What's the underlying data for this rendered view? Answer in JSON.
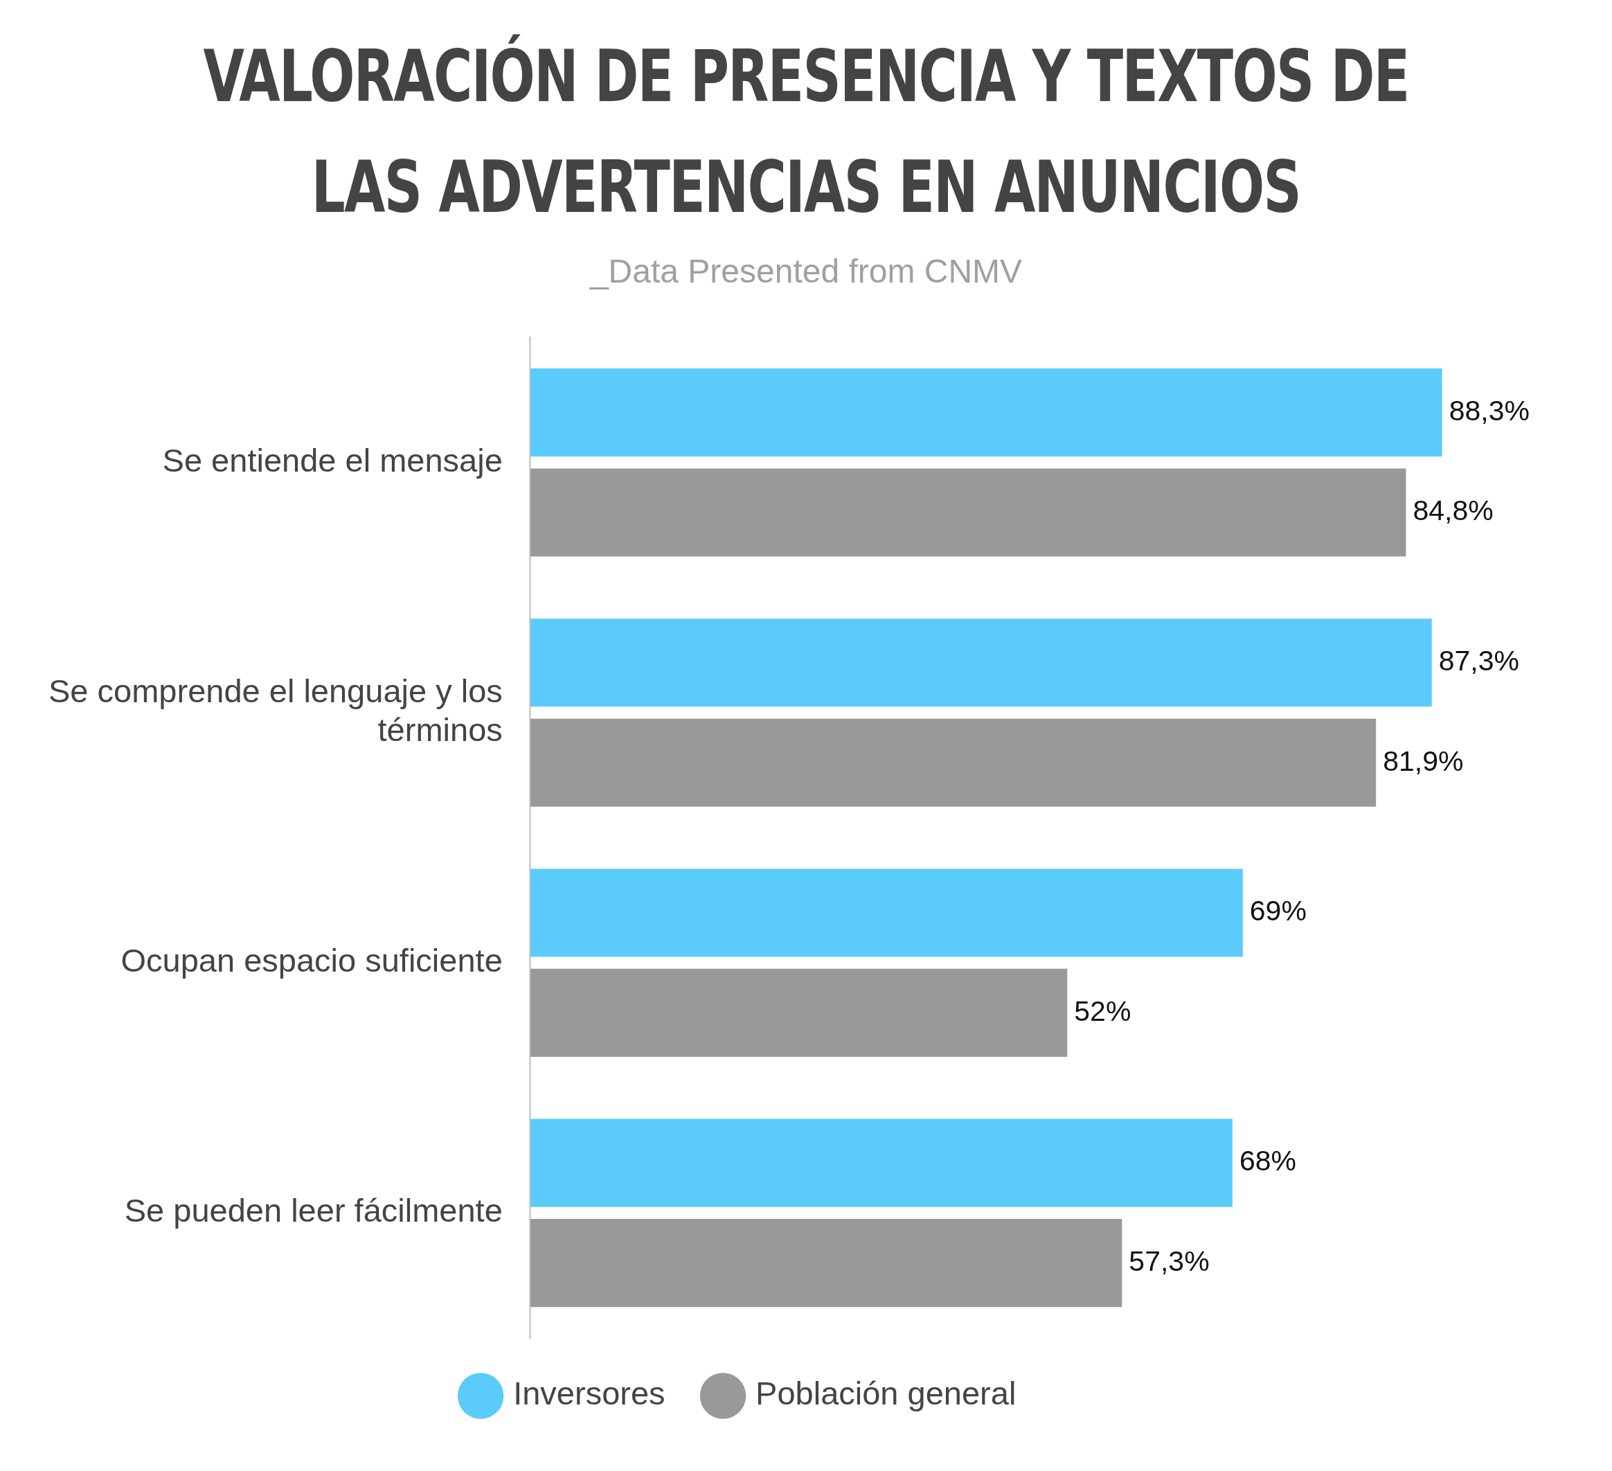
{
  "chart_data": {
    "type": "bar",
    "orientation": "horizontal",
    "title": "VALORACIÓN DE PRESENCIA Y TEXTOS DE LAS ADVERTENCIAS EN ANUNCIOS",
    "subtitle": "_Data Presented from CNMV",
    "categories": [
      "Se entiende el mensaje",
      "Se comprende el lenguaje y los términos",
      "Ocupan espacio suficiente",
      "Se pueden leer fácilmente"
    ],
    "series": [
      {
        "name": "Inversores",
        "color": "#5bcbfb",
        "values": [
          88.3,
          87.3,
          69,
          68
        ],
        "value_labels": [
          "88,3%",
          "87,3%",
          "69%",
          "68%"
        ]
      },
      {
        "name": "Población general",
        "color": "#999999",
        "values": [
          84.8,
          81.9,
          52,
          57.3
        ],
        "value_labels": [
          "84,8%",
          "81,9%",
          "52%",
          "57,3%"
        ]
      }
    ],
    "grid": false,
    "legend": "bottom"
  }
}
